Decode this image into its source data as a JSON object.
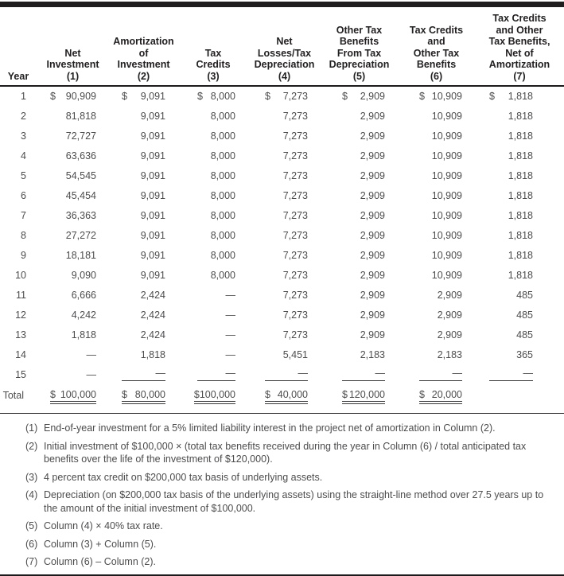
{
  "table": {
    "columns": [
      "Year",
      "Net\nInvestment\n(1)",
      "Amortization\nof\nInvestment\n(2)",
      "Tax\nCredits\n(3)",
      "Net\nLosses/Tax\nDepreciation\n(4)",
      "Other Tax\nBenefits\nFrom Tax\nDepreciation\n(5)",
      "Tax Credits\nand\nOther Tax\nBenefits\n(6)",
      "Tax Credits\nand Other\nTax Benefits,\nNet of\nAmortization\n(7)"
    ],
    "rows": [
      {
        "year": "1",
        "cells": [
          "$ 90,909",
          "$ 9,091",
          "$ 8,000",
          "$ 7,273",
          "$ 2,909",
          "$ 10,909",
          "$ 1,818"
        ],
        "ruled": false
      },
      {
        "year": "2",
        "cells": [
          "81,818",
          "9,091",
          "8,000",
          "7,273",
          "2,909",
          "10,909",
          "1,818"
        ],
        "ruled": false
      },
      {
        "year": "3",
        "cells": [
          "72,727",
          "9,091",
          "8,000",
          "7,273",
          "2,909",
          "10,909",
          "1,818"
        ],
        "ruled": false
      },
      {
        "year": "4",
        "cells": [
          "63,636",
          "9,091",
          "8,000",
          "7,273",
          "2,909",
          "10,909",
          "1,818"
        ],
        "ruled": false
      },
      {
        "year": "5",
        "cells": [
          "54,545",
          "9,091",
          "8,000",
          "7,273",
          "2,909",
          "10,909",
          "1,818"
        ],
        "ruled": false
      },
      {
        "year": "6",
        "cells": [
          "45,454",
          "9,091",
          "8,000",
          "7,273",
          "2,909",
          "10,909",
          "1,818"
        ],
        "ruled": false
      },
      {
        "year": "7",
        "cells": [
          "36,363",
          "9,091",
          "8,000",
          "7,273",
          "2,909",
          "10,909",
          "1,818"
        ],
        "ruled": false
      },
      {
        "year": "8",
        "cells": [
          "27,272",
          "9,091",
          "8,000",
          "7,273",
          "2,909",
          "10,909",
          "1,818"
        ],
        "ruled": false
      },
      {
        "year": "9",
        "cells": [
          "18,181",
          "9,091",
          "8,000",
          "7,273",
          "2,909",
          "10,909",
          "1,818"
        ],
        "ruled": false
      },
      {
        "year": "10",
        "cells": [
          "9,090",
          "9,091",
          "8,000",
          "7,273",
          "2,909",
          "10,909",
          "1,818"
        ],
        "ruled": false
      },
      {
        "year": "11",
        "cells": [
          "6,666",
          "2,424",
          "—",
          "7,273",
          "2,909",
          "2,909",
          "485"
        ],
        "ruled": false
      },
      {
        "year": "12",
        "cells": [
          "4,242",
          "2,424",
          "—",
          "7,273",
          "2,909",
          "2,909",
          "485"
        ],
        "ruled": false
      },
      {
        "year": "13",
        "cells": [
          "1,818",
          "2,424",
          "—",
          "7,273",
          "2,909",
          "2,909",
          "485"
        ],
        "ruled": false
      },
      {
        "year": "14",
        "cells": [
          "—",
          "1,818",
          "—",
          "5,451",
          "2,183",
          "2,183",
          "365"
        ],
        "ruled": false
      },
      {
        "year": "15",
        "cells": [
          "—",
          "—",
          "—",
          "—",
          "—",
          "—",
          "—"
        ],
        "ruled": true
      }
    ],
    "total": {
      "label": "Total",
      "cells": [
        "",
        "$100,000",
        "$80,000",
        "$100,000",
        "$ 40,000",
        "$120,000",
        "$ 20,000"
      ]
    }
  },
  "footnotes": [
    {
      "marker": "(1)",
      "text": "End-of-year investment for a 5% limited liability interest in the project net of amortization in Column (2)."
    },
    {
      "marker": "(2)",
      "text": "Initial investment of $100,000 × (total tax benefits received during the year in Column (6) / total anticipated tax benefits over the life of the investment of $120,000)."
    },
    {
      "marker": "(3)",
      "text": "4 percent tax credit on $200,000 tax basis of underlying assets."
    },
    {
      "marker": "(4)",
      "text": "Depreciation (on $200,000 tax basis of the underlying assets) using the straight-line method over 27.5 years up to the amount of the initial investment of $100,000."
    },
    {
      "marker": "(5)",
      "text": "Column (4) × 40% tax rate."
    },
    {
      "marker": "(6)",
      "text": "Column (3) + Column (5)."
    },
    {
      "marker": "(7)",
      "text": "Column (6) – Column (2)."
    }
  ]
}
